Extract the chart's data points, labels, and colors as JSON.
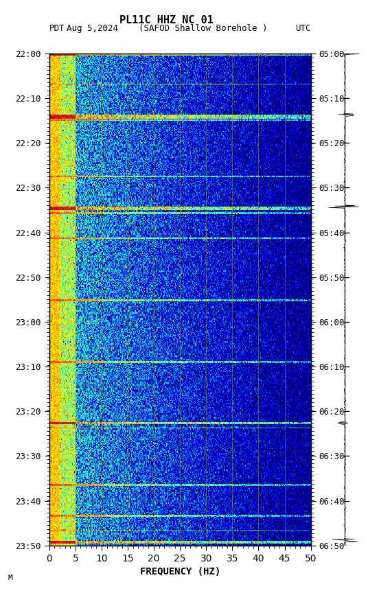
{
  "title_line1": "PL11C HHZ NC 01",
  "title_line2": "Aug 5,2024    (SAFOD Shallow Borehole )",
  "left_label": "PDT",
  "right_label": "UTC",
  "xlabel": "FREQUENCY (HZ)",
  "freq_min": 0,
  "freq_max": 50,
  "freq_ticks": [
    0,
    5,
    10,
    15,
    20,
    25,
    30,
    35,
    40,
    45,
    50
  ],
  "pdt_ticks": [
    "22:00",
    "22:10",
    "22:20",
    "22:30",
    "22:40",
    "22:50",
    "23:00",
    "23:10",
    "23:20",
    "23:30",
    "23:40",
    "23:50"
  ],
  "utc_ticks": [
    "05:00",
    "05:10",
    "05:20",
    "05:30",
    "05:40",
    "05:50",
    "06:00",
    "06:10",
    "06:20",
    "06:30",
    "06:40",
    "06:50"
  ],
  "n_time_bins": 480,
  "n_freq_bins": 500,
  "vertical_lines_freq": [
    5,
    10,
    15,
    20,
    25,
    30,
    35,
    40,
    45
  ],
  "background_color": "#ffffff",
  "colormap": "jet",
  "fig_width": 5.52,
  "fig_height": 8.64,
  "dpi": 100,
  "note_text": "M"
}
